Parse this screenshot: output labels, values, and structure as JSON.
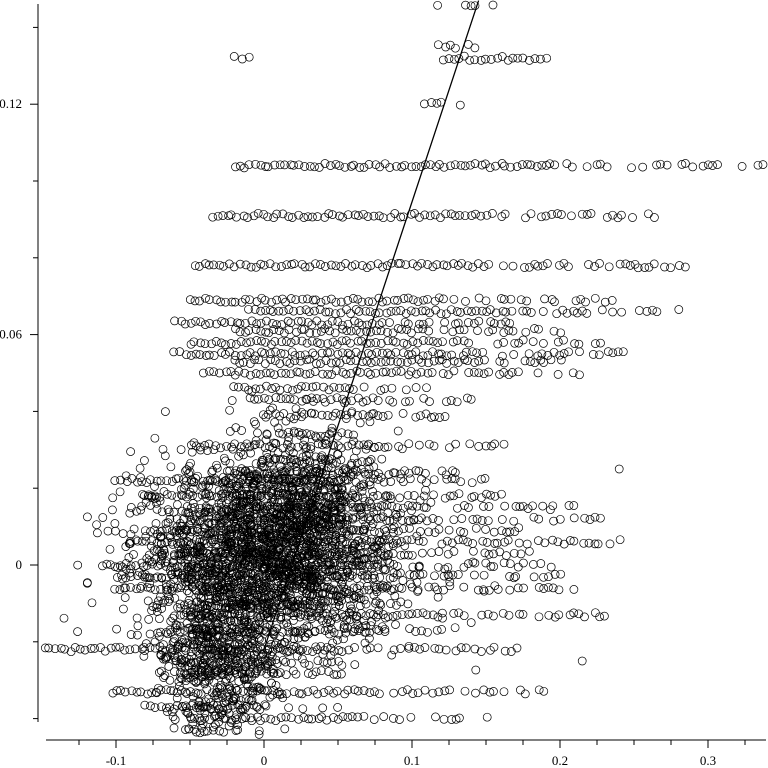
{
  "chart_data": {
    "type": "scatter",
    "title": "",
    "xlabel": "",
    "ylabel": "",
    "xlim": [
      -0.148,
      0.34
    ],
    "ylim": [
      -0.044,
      0.147
    ],
    "x_ticks": [
      {
        "value": -0.1,
        "label": "-0.1"
      },
      {
        "value": 0.0,
        "label": "0"
      },
      {
        "value": 0.1,
        "label": "0.1"
      },
      {
        "value": 0.2,
        "label": "0.2"
      },
      {
        "value": 0.3,
        "label": "0.3"
      }
    ],
    "y_ticks": [
      {
        "value": 0.0,
        "label": "0"
      },
      {
        "value": 0.06,
        "label": "0.06"
      },
      {
        "value": 0.12,
        "label": "0.12"
      }
    ],
    "y_minor_ticks": [
      -0.04,
      -0.02,
      0.02,
      0.04,
      0.08,
      0.1,
      0.14
    ],
    "marker": "open-circle",
    "grid": false,
    "fit_line": {
      "x": [
        0.0,
        0.145
      ],
      "y": [
        -0.022,
        0.147
      ]
    },
    "rows": [
      {
        "y": 0.146,
        "x_min": 0.117,
        "x_max": 0.158
      },
      {
        "y": 0.135,
        "x_min": 0.118,
        "x_max": 0.142
      },
      {
        "y": 0.132,
        "x_min": -0.02,
        "x_max": -0.006
      },
      {
        "y": 0.132,
        "x_min": 0.121,
        "x_max": 0.19
      },
      {
        "y": 0.12,
        "x_min": 0.109,
        "x_max": 0.132
      },
      {
        "y": 0.104,
        "x_min": -0.02,
        "x_max": 0.34
      },
      {
        "y": 0.091,
        "x_min": -0.035,
        "x_max": 0.263
      },
      {
        "y": 0.078,
        "x_min": -0.047,
        "x_max": 0.288
      },
      {
        "y": 0.069,
        "x_min": -0.05,
        "x_max": 0.235
      },
      {
        "y": 0.066,
        "x_min": -0.01,
        "x_max": 0.28
      },
      {
        "y": 0.063,
        "x_min": -0.06,
        "x_max": 0.17
      },
      {
        "y": 0.061,
        "x_min": -0.02,
        "x_max": 0.2
      },
      {
        "y": 0.058,
        "x_min": -0.05,
        "x_max": 0.23
      },
      {
        "y": 0.055,
        "x_min": -0.06,
        "x_max": 0.25
      },
      {
        "y": 0.053,
        "x_min": -0.02,
        "x_max": 0.2
      },
      {
        "y": 0.05,
        "x_min": -0.04,
        "x_max": 0.22
      },
      {
        "y": 0.046,
        "x_min": -0.02,
        "x_max": 0.11
      },
      {
        "y": 0.043,
        "x_min": -0.01,
        "x_max": 0.14
      },
      {
        "y": 0.039,
        "x_min": 0.0,
        "x_max": 0.13
      },
      {
        "y": 0.034,
        "x_min": 0.01,
        "x_max": 0.06
      },
      {
        "y": 0.031,
        "x_min": -0.05,
        "x_max": 0.17
      },
      {
        "y": 0.027,
        "x_min": 0.0,
        "x_max": 0.08
      },
      {
        "y": 0.024,
        "x_min": -0.02,
        "x_max": 0.13
      },
      {
        "y": 0.022,
        "x_min": -0.1,
        "x_max": 0.15
      },
      {
        "y": 0.018,
        "x_min": -0.08,
        "x_max": 0.16
      },
      {
        "y": 0.015,
        "x_min": -0.05,
        "x_max": 0.22
      },
      {
        "y": 0.012,
        "x_min": -0.05,
        "x_max": 0.23
      },
      {
        "y": 0.009,
        "x_min": -0.08,
        "x_max": 0.17
      },
      {
        "y": 0.006,
        "x_min": -0.09,
        "x_max": 0.24
      },
      {
        "y": 0.003,
        "x_min": -0.06,
        "x_max": 0.18
      },
      {
        "y": 0.0,
        "x_min": -0.11,
        "x_max": 0.2
      },
      {
        "y": -0.003,
        "x_min": -0.1,
        "x_max": 0.2
      },
      {
        "y": -0.006,
        "x_min": -0.1,
        "x_max": 0.22
      },
      {
        "y": -0.01,
        "x_min": -0.05,
        "x_max": 0.1
      },
      {
        "y": -0.013,
        "x_min": -0.06,
        "x_max": 0.23
      },
      {
        "y": -0.017,
        "x_min": -0.07,
        "x_max": 0.12
      },
      {
        "y": -0.022,
        "x_min": -0.148,
        "x_max": 0.17
      },
      {
        "y": -0.025,
        "x_min": -0.06,
        "x_max": 0.05
      },
      {
        "y": -0.028,
        "x_min": -0.06,
        "x_max": 0.06
      },
      {
        "y": -0.033,
        "x_min": -0.1,
        "x_max": 0.19
      },
      {
        "y": -0.037,
        "x_min": -0.08,
        "x_max": 0.04
      },
      {
        "y": -0.04,
        "x_min": -0.05,
        "x_max": 0.15
      },
      {
        "y": -0.043,
        "x_min": -0.05,
        "x_max": -0.03
      }
    ],
    "clusters": [
      {
        "cx": 0.0,
        "cy": 0.0,
        "sx": 0.045,
        "sy": 0.012,
        "n": 1600
      },
      {
        "cx": 0.015,
        "cy": 0.015,
        "sx": 0.03,
        "sy": 0.01,
        "n": 700
      },
      {
        "cx": -0.03,
        "cy": -0.025,
        "sx": 0.02,
        "sy": 0.01,
        "n": 500
      }
    ],
    "outliers": [
      {
        "x": 0.215,
        "y": -0.025
      },
      {
        "x": 0.24,
        "y": 0.025
      },
      {
        "x": 0.17,
        "y": -0.003
      },
      {
        "x": 0.065,
        "y": 0.037
      },
      {
        "x": 0.14,
        "y": -0.015
      },
      {
        "x": 0.125,
        "y": -0.003
      }
    ]
  }
}
